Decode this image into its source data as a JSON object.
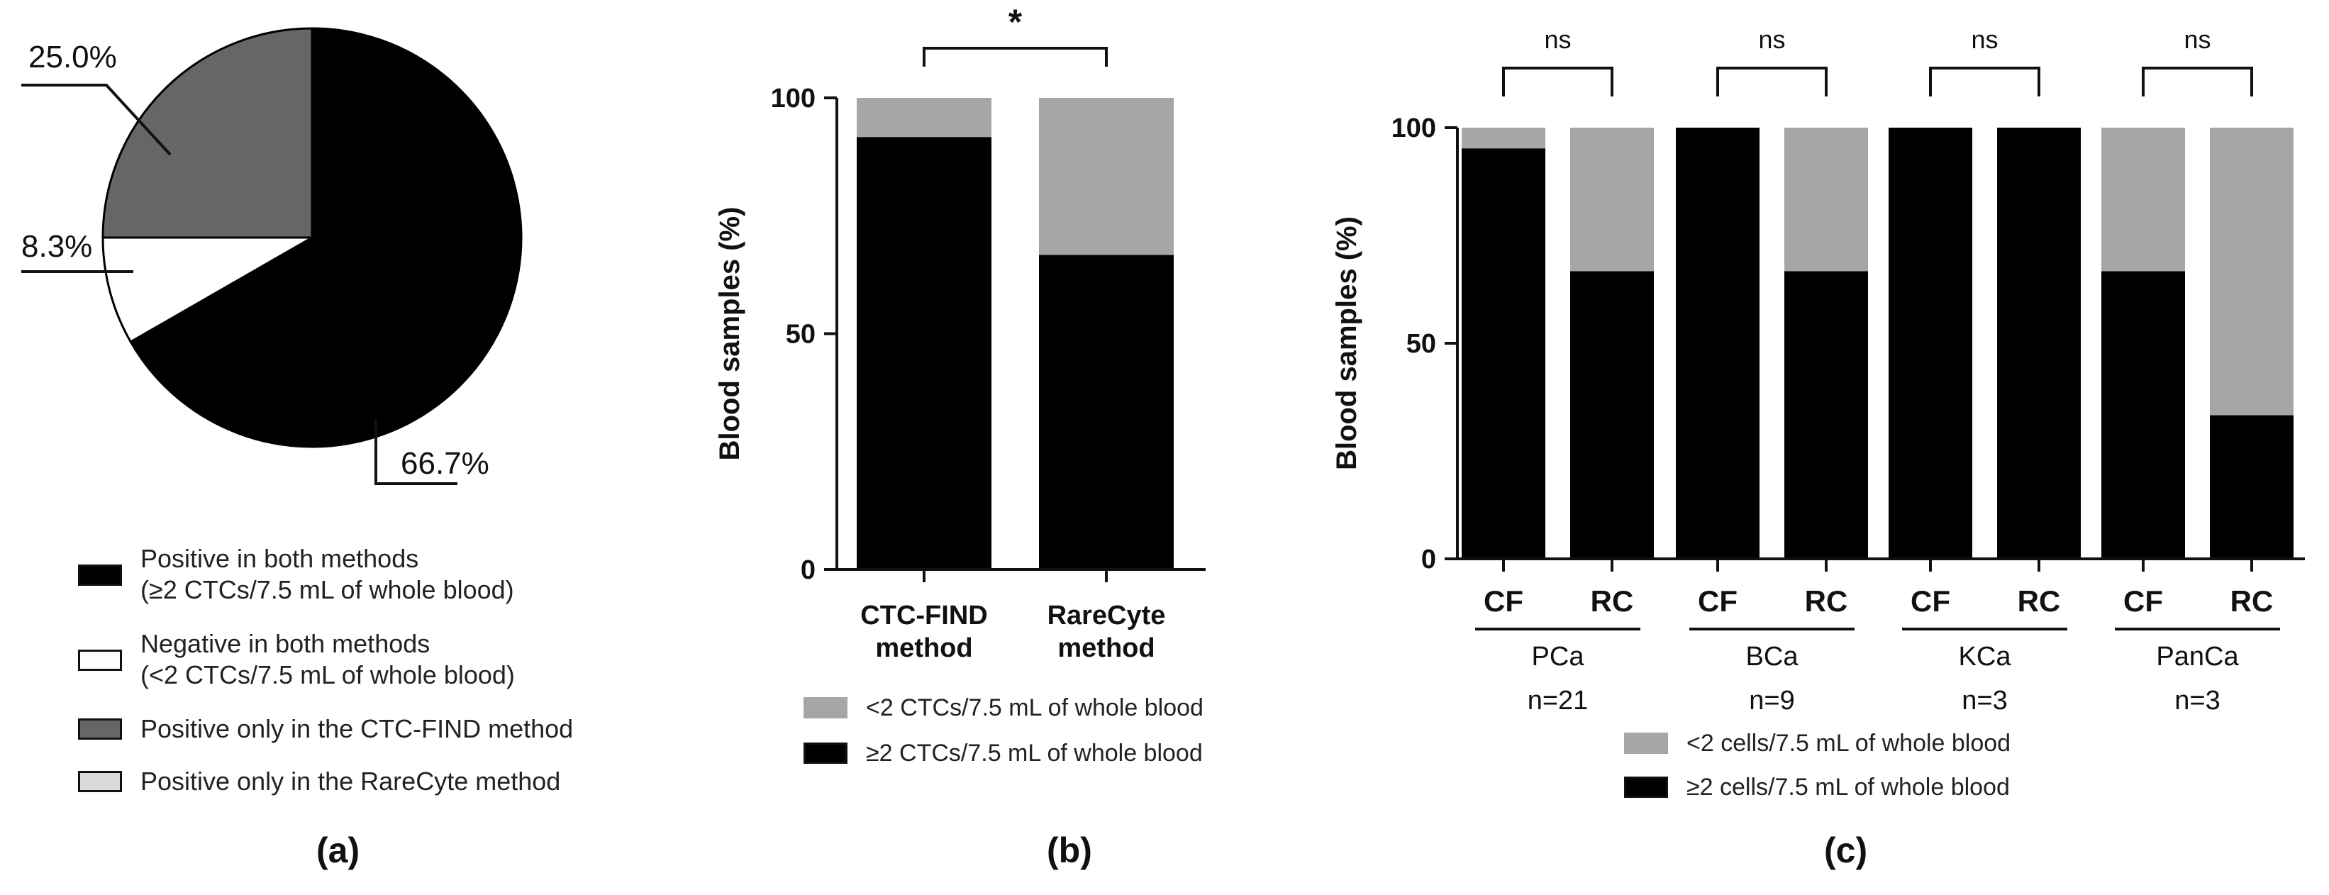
{
  "colors": {
    "black": "#000000",
    "white": "#ffffff",
    "dark_gray": "#666666",
    "light_gray": "#a6a6a6",
    "pale_gray": "#d9d9d9"
  },
  "chart_data": [
    {
      "id": "a",
      "type": "pie",
      "panel_label": "(a)",
      "slices": [
        {
          "label": "66.7%",
          "value": 66.7,
          "color": "#000000"
        },
        {
          "label": "8.3%",
          "value": 8.3,
          "color": "#ffffff"
        },
        {
          "label": "25.0%",
          "value": 25.0,
          "color": "#666666"
        },
        {
          "label": "",
          "value": 0.0,
          "color": "#d9d9d9"
        }
      ],
      "legend": [
        {
          "lines": [
            "Positive in both methods",
            "(≥2 CTCs/7.5 mL of whole blood)"
          ],
          "color": "#000000"
        },
        {
          "lines": [
            "Negative in both methods",
            "(<2 CTCs/7.5 mL of whole blood)"
          ],
          "color": "#ffffff"
        },
        {
          "lines": [
            "Positive only in the CTC-FIND method"
          ],
          "color": "#666666"
        },
        {
          "lines": [
            "Positive only in the RareCyte method"
          ],
          "color": "#d9d9d9"
        }
      ]
    },
    {
      "id": "b",
      "type": "bar",
      "stacked": true,
      "panel_label": "(b)",
      "ylabel": "Blood samples (%)",
      "ylim": [
        0,
        100
      ],
      "yticks": [
        "0",
        "50",
        "100"
      ],
      "categories": [
        [
          "CTC-FIND",
          "method"
        ],
        [
          "RareCyte",
          "method"
        ]
      ],
      "series": [
        {
          "name": "≥2 CTCs/7.5 mL of whole blood",
          "color": "#000000",
          "values": [
            91.7,
            66.7
          ]
        },
        {
          "name": "<2 CTCs/7.5 mL of whole blood",
          "color": "#a6a6a6",
          "values": [
            8.3,
            33.3
          ]
        }
      ],
      "legend_order": [
        "<2 CTCs/7.5 mL of whole blood",
        "≥2 CTCs/7.5 mL of whole blood"
      ],
      "significance": [
        {
          "between": [
            0,
            1
          ],
          "label": "*"
        }
      ]
    },
    {
      "id": "c",
      "type": "bar",
      "stacked": true,
      "panel_label": "(c)",
      "ylabel": "Blood samples (%)",
      "ylim": [
        0,
        100
      ],
      "yticks": [
        "0",
        "50",
        "100"
      ],
      "categories": [
        "CF",
        "RC",
        "CF",
        "RC",
        "CF",
        "RC",
        "CF",
        "RC"
      ],
      "groups": [
        {
          "name": "PCa",
          "n": "n=21"
        },
        {
          "name": "BCa",
          "n": "n=9"
        },
        {
          "name": "KCa",
          "n": "n=3"
        },
        {
          "name": "PanCa",
          "n": "n=3"
        }
      ],
      "series": [
        {
          "name": "≥2 cells/7.5 mL of whole blood",
          "color": "#000000",
          "values": [
            95.2,
            66.7,
            100,
            66.7,
            100,
            100,
            66.7,
            33.3
          ]
        },
        {
          "name": "<2 cells/7.5 mL of whole blood",
          "color": "#a6a6a6",
          "values": [
            4.8,
            33.3,
            0,
            33.3,
            0,
            0,
            33.3,
            66.7
          ]
        }
      ],
      "legend_order": [
        "<2 cells/7.5 mL of whole blood",
        "≥2 cells/7.5 mL of whole blood"
      ],
      "significance": [
        {
          "between": [
            0,
            1
          ],
          "label": "ns"
        },
        {
          "between": [
            2,
            3
          ],
          "label": "ns"
        },
        {
          "between": [
            4,
            5
          ],
          "label": "ns"
        },
        {
          "between": [
            6,
            7
          ],
          "label": "ns"
        }
      ]
    }
  ]
}
